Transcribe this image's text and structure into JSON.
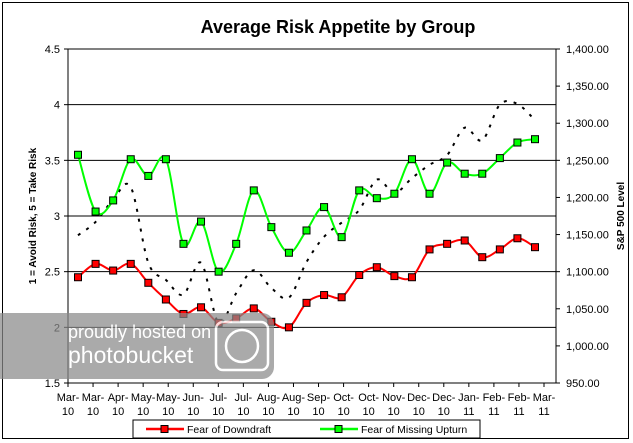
{
  "chart_data": {
    "type": "line",
    "title": "Average Risk Appetite by Group",
    "ylabel": "1 = Avoid Risk, 5 = Take Risk",
    "y2label": "S&P 500 Level",
    "ylim": [
      1.5,
      4.5
    ],
    "y_ticks": [
      "1.5",
      "2",
      "2.5",
      "3",
      "3.5",
      "4",
      "4.5"
    ],
    "y2lim": [
      950,
      1400
    ],
    "y2_ticks": [
      "950.00",
      "1,000.00",
      "1,050.00",
      "1,100.00",
      "1,150.00",
      "1,200.00",
      "1,250.00",
      "1,300.00",
      "1,350.00",
      "1,400.00"
    ],
    "x_tick_labels": [
      [
        "Mar-",
        "10"
      ],
      [
        "Mar-",
        "10"
      ],
      [
        "Apr-",
        "10"
      ],
      [
        "May-",
        "10"
      ],
      [
        "May-",
        "10"
      ],
      [
        "Jun-",
        "10"
      ],
      [
        "Jul-",
        "10"
      ],
      [
        "Jul-",
        "10"
      ],
      [
        "Aug-",
        "10"
      ],
      [
        "Aug-",
        "10"
      ],
      [
        "Sep-",
        "10"
      ],
      [
        "Oct-",
        "10"
      ],
      [
        "Oct-",
        "10"
      ],
      [
        "Nov-",
        "10"
      ],
      [
        "Dec-",
        "10"
      ],
      [
        "Dec-",
        "10"
      ],
      [
        "Jan-",
        "11"
      ],
      [
        "Feb-",
        "11"
      ],
      [
        "Feb-",
        "11"
      ],
      [
        "Mar-",
        "11"
      ]
    ],
    "grid": "horizontal major lines",
    "legend": "bottom",
    "series": [
      {
        "name": "Fear of Downdraft",
        "axis": "left",
        "color": "#ff0000",
        "marker": "square",
        "values": [
          2.45,
          2.57,
          2.51,
          2.57,
          2.4,
          2.25,
          2.12,
          2.18,
          2.04,
          2.08,
          2.17,
          2.05,
          2.0,
          2.22,
          2.29,
          2.27,
          2.47,
          2.54,
          2.46,
          2.45,
          2.7,
          2.75,
          2.78,
          2.63,
          2.7,
          2.8,
          2.72
        ]
      },
      {
        "name": "Fear of Missing Upturn",
        "axis": "left",
        "color": "#00ff00",
        "marker": "square",
        "values": [
          3.55,
          3.04,
          3.14,
          3.51,
          3.36,
          3.51,
          2.75,
          2.95,
          2.5,
          2.75,
          3.23,
          2.9,
          2.67,
          2.87,
          3.08,
          2.81,
          3.23,
          3.16,
          3.2,
          3.51,
          3.2,
          3.48,
          3.38,
          3.38,
          3.52,
          3.66,
          3.69
        ]
      },
      {
        "axis": "right",
        "color": "#000000",
        "style": "dotted",
        "values": [
          1149,
          1167,
          1197,
          1214,
          1112,
          1089,
          1069,
          1112,
          1031,
          1071,
          1102,
          1078,
          1065,
          1113,
          1147,
          1166,
          1183,
          1224,
          1206,
          1226,
          1244,
          1257,
          1294,
          1277,
          1325,
          1326,
          1304
        ]
      }
    ]
  },
  "watermark": {
    "line1": "proudly hosted on",
    "line2": "photobucket"
  }
}
